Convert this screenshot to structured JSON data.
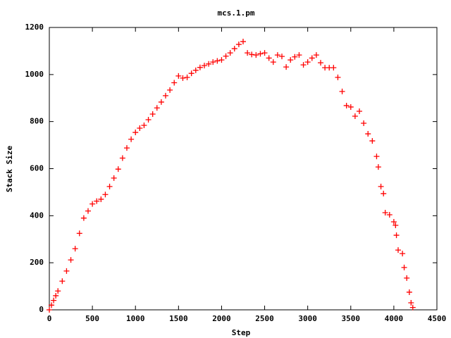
{
  "chart_data": {
    "type": "scatter",
    "title": "mcs.1.pm",
    "x_label": "Step",
    "y_label": "Stack Size",
    "xlim": [
      0,
      4500
    ],
    "ylim": [
      0,
      1200
    ],
    "xticks": [
      0,
      500,
      1000,
      1500,
      2000,
      2500,
      3000,
      3500,
      4000,
      4500
    ],
    "yticks": [
      0,
      200,
      400,
      600,
      800,
      1000,
      1200
    ],
    "series": [
      {
        "color": "#ff0000",
        "x": [
          0,
          25,
          50,
          75,
          100,
          150,
          200,
          250,
          300,
          350,
          400,
          450,
          500,
          550,
          600,
          650,
          700,
          750,
          800,
          850,
          900,
          950,
          1000,
          1050,
          1100,
          1150,
          1200,
          1250,
          1300,
          1350,
          1400,
          1450,
          1500,
          1550,
          1600,
          1650,
          1700,
          1750,
          1800,
          1850,
          1900,
          1950,
          2000,
          2050,
          2100,
          2150,
          2200,
          2250,
          2300,
          2350,
          2400,
          2450,
          2500,
          2550,
          2600,
          2650,
          2700,
          2750,
          2800,
          2850,
          2900,
          2950,
          3000,
          3050,
          3100,
          3150,
          3200,
          3250,
          3300,
          3350,
          3400,
          3450,
          3500,
          3550,
          3600,
          3650,
          3700,
          3750,
          3800,
          3820,
          3850,
          3880,
          3900,
          3950,
          4000,
          4020,
          4030,
          4050,
          4100,
          4120,
          4150,
          4180,
          4200,
          4220
        ],
        "values": [
          0,
          20,
          40,
          60,
          80,
          122,
          165,
          212,
          260,
          325,
          390,
          420,
          450,
          462,
          470,
          490,
          524,
          560,
          598,
          645,
          688,
          725,
          754,
          772,
          784,
          808,
          832,
          858,
          883,
          910,
          934,
          965,
          994,
          985,
          988,
          1005,
          1018,
          1030,
          1038,
          1045,
          1053,
          1058,
          1062,
          1078,
          1092,
          1110,
          1128,
          1140,
          1092,
          1085,
          1083,
          1088,
          1092,
          1070,
          1053,
          1083,
          1077,
          1032,
          1062,
          1075,
          1083,
          1041,
          1053,
          1070,
          1083,
          1050,
          1029,
          1029,
          1029,
          988,
          928,
          868,
          862,
          823,
          844,
          793,
          748,
          718,
          652,
          607,
          524,
          494,
          413,
          404,
          374,
          359,
          317,
          254,
          239,
          180,
          135,
          75,
          30,
          10
        ]
      }
    ]
  }
}
